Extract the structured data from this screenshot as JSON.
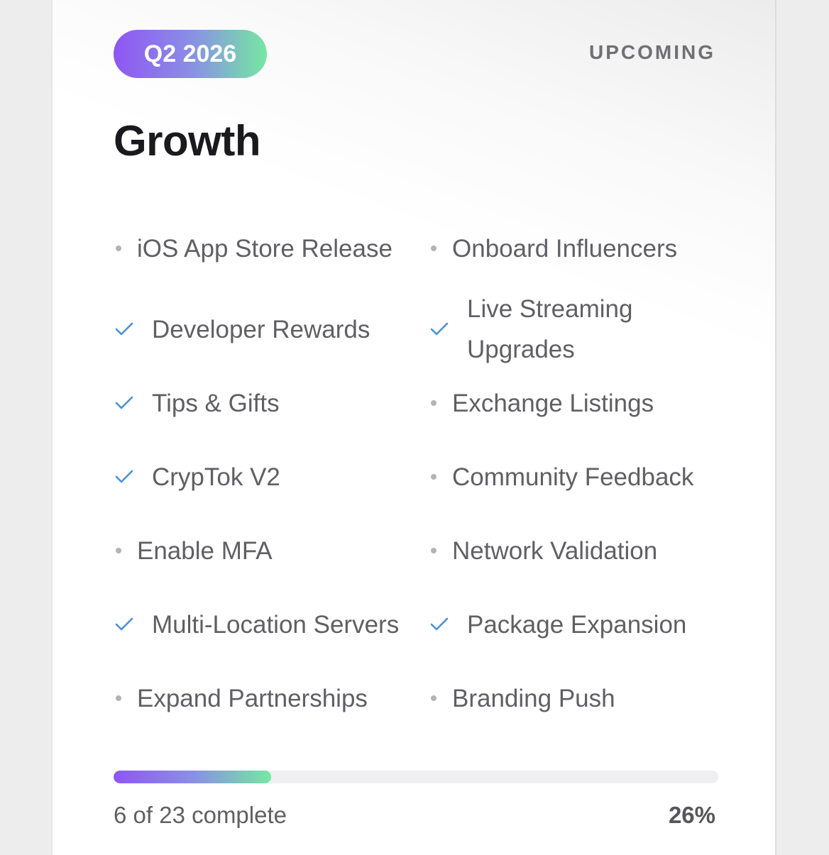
{
  "card": {
    "quarter": "Q2 2026",
    "status": "UPCOMING",
    "title": "Growth",
    "colors": {
      "gradient_start": "#8f56f2",
      "gradient_end": "#75e8a2",
      "check": "#4a90d9",
      "bullet": "#b4b4b8"
    },
    "items": [
      {
        "label": "iOS App Store Release",
        "done": false
      },
      {
        "label": "Onboard Influencers",
        "done": false
      },
      {
        "label": "Developer Rewards",
        "done": true
      },
      {
        "label": "Live Streaming Upgrades",
        "done": true
      },
      {
        "label": "Tips & Gifts",
        "done": true
      },
      {
        "label": "Exchange Listings",
        "done": false
      },
      {
        "label": "CrypTok V2",
        "done": true
      },
      {
        "label": "Community Feedback",
        "done": false
      },
      {
        "label": "Enable MFA",
        "done": false
      },
      {
        "label": "Network Validation",
        "done": false
      },
      {
        "label": "Multi-Location Servers",
        "done": true
      },
      {
        "label": "Package Expansion",
        "done": true
      },
      {
        "label": "Expand Partnerships",
        "done": false
      },
      {
        "label": "Branding Push",
        "done": false
      }
    ],
    "progress": {
      "summary": "6 of 23 complete",
      "percent_label": "26%",
      "value": 0.26
    }
  }
}
